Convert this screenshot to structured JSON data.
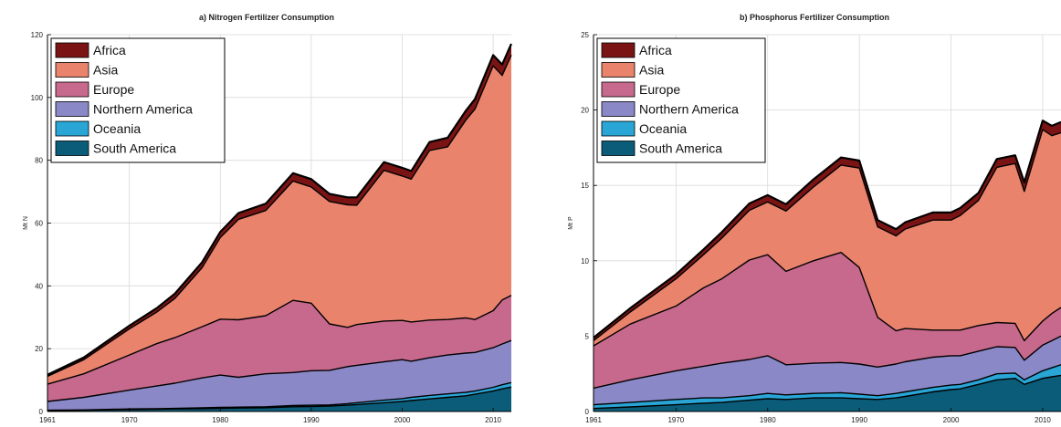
{
  "chart_data": [
    {
      "type": "area",
      "title": "a)   Nitrogen Fertilizer Consumption",
      "xlabel": "",
      "ylabel": "Mt N",
      "xlim": [
        1961,
        2012
      ],
      "ylim": [
        0,
        120
      ],
      "xticks": [
        "1961",
        "1970",
        "1980",
        "1990",
        "2000",
        "2010"
      ],
      "yticks": [
        "0",
        "20",
        "40",
        "60",
        "80",
        "100",
        "120"
      ],
      "grid": true,
      "legend_position": "top-left",
      "x": [
        1961,
        1965,
        1970,
        1973,
        1975,
        1978,
        1980,
        1982,
        1985,
        1988,
        1990,
        1992,
        1994,
        1995,
        1998,
        2000,
        2001,
        2003,
        2005,
        2007,
        2008,
        2010,
        2011,
        2012
      ],
      "series": [
        {
          "name": "South America",
          "color": "#0b5c78",
          "values": [
            0.3,
            0.4,
            0.6,
            0.7,
            0.8,
            0.9,
            1.0,
            1.1,
            1.2,
            1.5,
            1.6,
            1.7,
            2.0,
            2.2,
            2.8,
            3.2,
            3.5,
            4.0,
            4.5,
            5.0,
            5.5,
            6.5,
            7.2,
            7.8
          ]
        },
        {
          "name": "Oceania",
          "color": "#29a5d6",
          "values": [
            0.1,
            0.1,
            0.2,
            0.2,
            0.2,
            0.3,
            0.3,
            0.3,
            0.3,
            0.4,
            0.4,
            0.4,
            0.5,
            0.6,
            0.8,
            0.9,
            1.0,
            1.1,
            1.1,
            1.1,
            1.0,
            1.2,
            1.3,
            1.4
          ]
        },
        {
          "name": "Northern America",
          "color": "#8a88c6",
          "values": [
            2.8,
            4.0,
            6.0,
            7.2,
            8.0,
            9.5,
            10.3,
            9.5,
            10.5,
            10.5,
            11.0,
            11.0,
            11.8,
            11.9,
            12.2,
            12.4,
            11.5,
            12.0,
            12.4,
            12.5,
            12.3,
            12.6,
            13.0,
            13.4
          ]
        },
        {
          "name": "Europe",
          "color": "#c6698c",
          "values": [
            5.5,
            7.5,
            11.2,
            13.5,
            14.5,
            16.3,
            17.8,
            18.3,
            18.5,
            23.0,
            21.5,
            14.8,
            12.5,
            13.0,
            13.0,
            12.5,
            12.5,
            12.0,
            11.3,
            11.2,
            10.5,
            11.8,
            14.0,
            14.4
          ]
        },
        {
          "name": "Asia",
          "color": "#e9836c",
          "values": [
            2.5,
            4.5,
            8.3,
            10.0,
            12.5,
            18.8,
            26.0,
            32.0,
            33.5,
            38.0,
            37.0,
            39.0,
            39.0,
            38.0,
            48.0,
            46.0,
            45.5,
            54.0,
            55.0,
            63.0,
            67.0,
            78.0,
            71.5,
            76.5
          ]
        },
        {
          "name": "Africa",
          "color": "#7a1414",
          "values": [
            0.5,
            0.7,
            1.0,
            1.3,
            1.5,
            1.7,
            1.8,
            2.0,
            2.2,
            2.5,
            2.5,
            2.4,
            2.4,
            2.5,
            2.6,
            2.6,
            2.6,
            2.7,
            2.9,
            3.0,
            3.2,
            3.4,
            3.5,
            3.6
          ]
        }
      ]
    },
    {
      "type": "area",
      "title": "b)   Phosphorus Fertilizer Consumption",
      "xlabel": "",
      "ylabel": "Mt P",
      "xlim": [
        1961,
        2012
      ],
      "ylim": [
        0,
        25
      ],
      "xticks": [
        "1961",
        "1970",
        "1980",
        "1990",
        "2000",
        "2010"
      ],
      "yticks": [
        "0",
        "5",
        "10",
        "15",
        "20",
        "25"
      ],
      "grid": true,
      "legend_position": "top-left",
      "x": [
        1961,
        1965,
        1970,
        1973,
        1975,
        1978,
        1980,
        1982,
        1985,
        1988,
        1990,
        1992,
        1994,
        1995,
        1998,
        2000,
        2001,
        2003,
        2005,
        2007,
        2008,
        2010,
        2011,
        2012
      ],
      "series": [
        {
          "name": "South America",
          "color": "#0b5c78",
          "values": [
            0.2,
            0.3,
            0.45,
            0.55,
            0.6,
            0.75,
            0.85,
            0.8,
            0.9,
            0.9,
            0.85,
            0.8,
            0.9,
            1.0,
            1.3,
            1.45,
            1.5,
            1.8,
            2.1,
            2.2,
            1.8,
            2.2,
            2.3,
            2.4
          ]
        },
        {
          "name": "Oceania",
          "color": "#29a5d6",
          "values": [
            0.25,
            0.3,
            0.35,
            0.35,
            0.3,
            0.3,
            0.35,
            0.3,
            0.3,
            0.35,
            0.3,
            0.25,
            0.3,
            0.3,
            0.3,
            0.3,
            0.3,
            0.3,
            0.4,
            0.35,
            0.3,
            0.5,
            0.6,
            0.7
          ]
        },
        {
          "name": "Northern America",
          "color": "#8a88c6",
          "values": [
            1.1,
            1.5,
            1.9,
            2.1,
            2.3,
            2.4,
            2.5,
            2.0,
            2.0,
            2.0,
            2.0,
            1.9,
            1.95,
            2.0,
            2.0,
            1.95,
            1.9,
            1.9,
            1.8,
            1.7,
            1.3,
            1.7,
            1.8,
            1.9
          ]
        },
        {
          "name": "Europe",
          "color": "#c6698c",
          "values": [
            2.8,
            3.7,
            4.3,
            5.2,
            5.6,
            6.6,
            6.7,
            6.2,
            6.8,
            7.3,
            6.4,
            3.3,
            2.2,
            2.2,
            1.8,
            1.7,
            1.7,
            1.7,
            1.6,
            1.6,
            1.3,
            1.6,
            1.8,
            1.9
          ]
        },
        {
          "name": "Asia",
          "color": "#e9836c",
          "values": [
            0.35,
            0.8,
            1.8,
            2.2,
            2.7,
            3.3,
            3.5,
            4.0,
            4.9,
            5.8,
            6.6,
            6.0,
            6.3,
            6.6,
            7.3,
            7.3,
            7.6,
            8.3,
            10.3,
            10.6,
            9.9,
            12.7,
            11.8,
            11.6
          ]
        },
        {
          "name": "Africa",
          "color": "#7a1414",
          "values": [
            0.2,
            0.25,
            0.3,
            0.35,
            0.4,
            0.45,
            0.45,
            0.45,
            0.5,
            0.5,
            0.5,
            0.45,
            0.45,
            0.45,
            0.5,
            0.5,
            0.5,
            0.5,
            0.55,
            0.55,
            0.6,
            0.6,
            0.65,
            0.7
          ]
        }
      ]
    }
  ]
}
